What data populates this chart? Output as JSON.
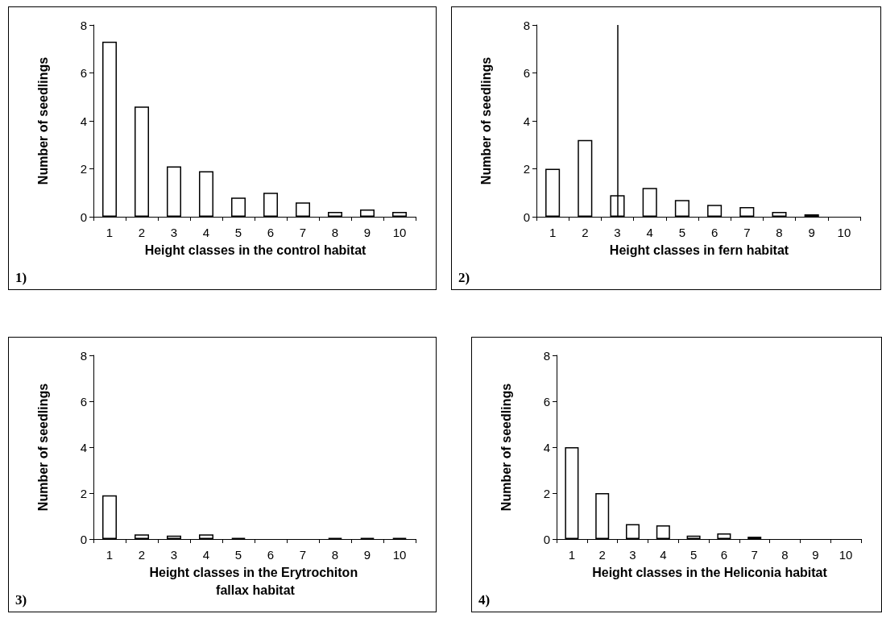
{
  "chart_data": [
    {
      "type": "bar",
      "categories": [
        "1",
        "2",
        "3",
        "4",
        "5",
        "6",
        "7",
        "8",
        "9",
        "10"
      ],
      "values": [
        7.3,
        4.6,
        2.1,
        1.9,
        0.8,
        1.0,
        0.6,
        0.2,
        0.3,
        0.2
      ],
      "color": "#ffffff",
      "ylim": [
        0,
        8
      ],
      "yticks": [
        0,
        2,
        4,
        6,
        8
      ],
      "grid": false,
      "xlabel": "Height classes in the control habitat",
      "ylabel": "Number of seedlings",
      "annotations": [
        "1)"
      ]
    },
    {
      "type": "bar",
      "categories": [
        "1",
        "2",
        "3",
        "4",
        "5",
        "6",
        "7",
        "8",
        "9",
        "10"
      ],
      "values": [
        2.0,
        3.2,
        0.9,
        1.2,
        0.7,
        0.5,
        0.4,
        0.2,
        0.1,
        0
      ],
      "colors": [
        "#ffffff",
        "#ffffff",
        "#ffffff",
        "#ffffff",
        "#ffffff",
        "#ffffff",
        "#ffffff",
        "#ffffff",
        "#000000",
        "#ffffff"
      ],
      "ylim": [
        0,
        8
      ],
      "yticks": [
        0,
        2,
        4,
        6,
        8
      ],
      "grid": false,
      "xlabel": "Height classes in fern habitat",
      "ylabel": "Number of seedlings",
      "annotations": [
        "2)"
      ],
      "ref_lines": [
        {
          "axis": "x",
          "value": "3",
          "label": null,
          "color": "#000000"
        }
      ]
    },
    {
      "type": "bar",
      "categories": [
        "1",
        "2",
        "3",
        "4",
        "5",
        "6",
        "7",
        "8",
        "9",
        "10"
      ],
      "values": [
        1.9,
        0.2,
        0.15,
        0.2,
        0.05,
        0,
        0,
        0.05,
        0.05,
        0.05
      ],
      "colors": [
        "#ffffff",
        "#ffffff",
        "#ffffff",
        "#ffffff",
        "#000000",
        "#ffffff",
        "#ffffff",
        "#000000",
        "#000000",
        "#000000"
      ],
      "ylim": [
        0,
        8
      ],
      "yticks": [
        0,
        2,
        4,
        6,
        8
      ],
      "grid": false,
      "xlabel": "Height classes in the Erytrochiton fallax habitat",
      "ylabel": "Number of seedlings",
      "annotations": [
        "3)"
      ]
    },
    {
      "type": "bar",
      "categories": [
        "1",
        "2",
        "3",
        "4",
        "5",
        "6",
        "7",
        "8",
        "9",
        "10"
      ],
      "values": [
        4.0,
        2.0,
        0.65,
        0.6,
        0.15,
        0.25,
        0.1,
        0,
        0,
        0
      ],
      "colors": [
        "#ffffff",
        "#ffffff",
        "#ffffff",
        "#ffffff",
        "#ffffff",
        "#ffffff",
        "#000000",
        "#ffffff",
        "#ffffff",
        "#ffffff"
      ],
      "ylim": [
        0,
        8
      ],
      "yticks": [
        0,
        2,
        4,
        6,
        8
      ],
      "grid": false,
      "xlabel": "Height classes in the Heliconia habitat",
      "ylabel": "Number of seedlings",
      "annotations": [
        "4)"
      ]
    }
  ]
}
